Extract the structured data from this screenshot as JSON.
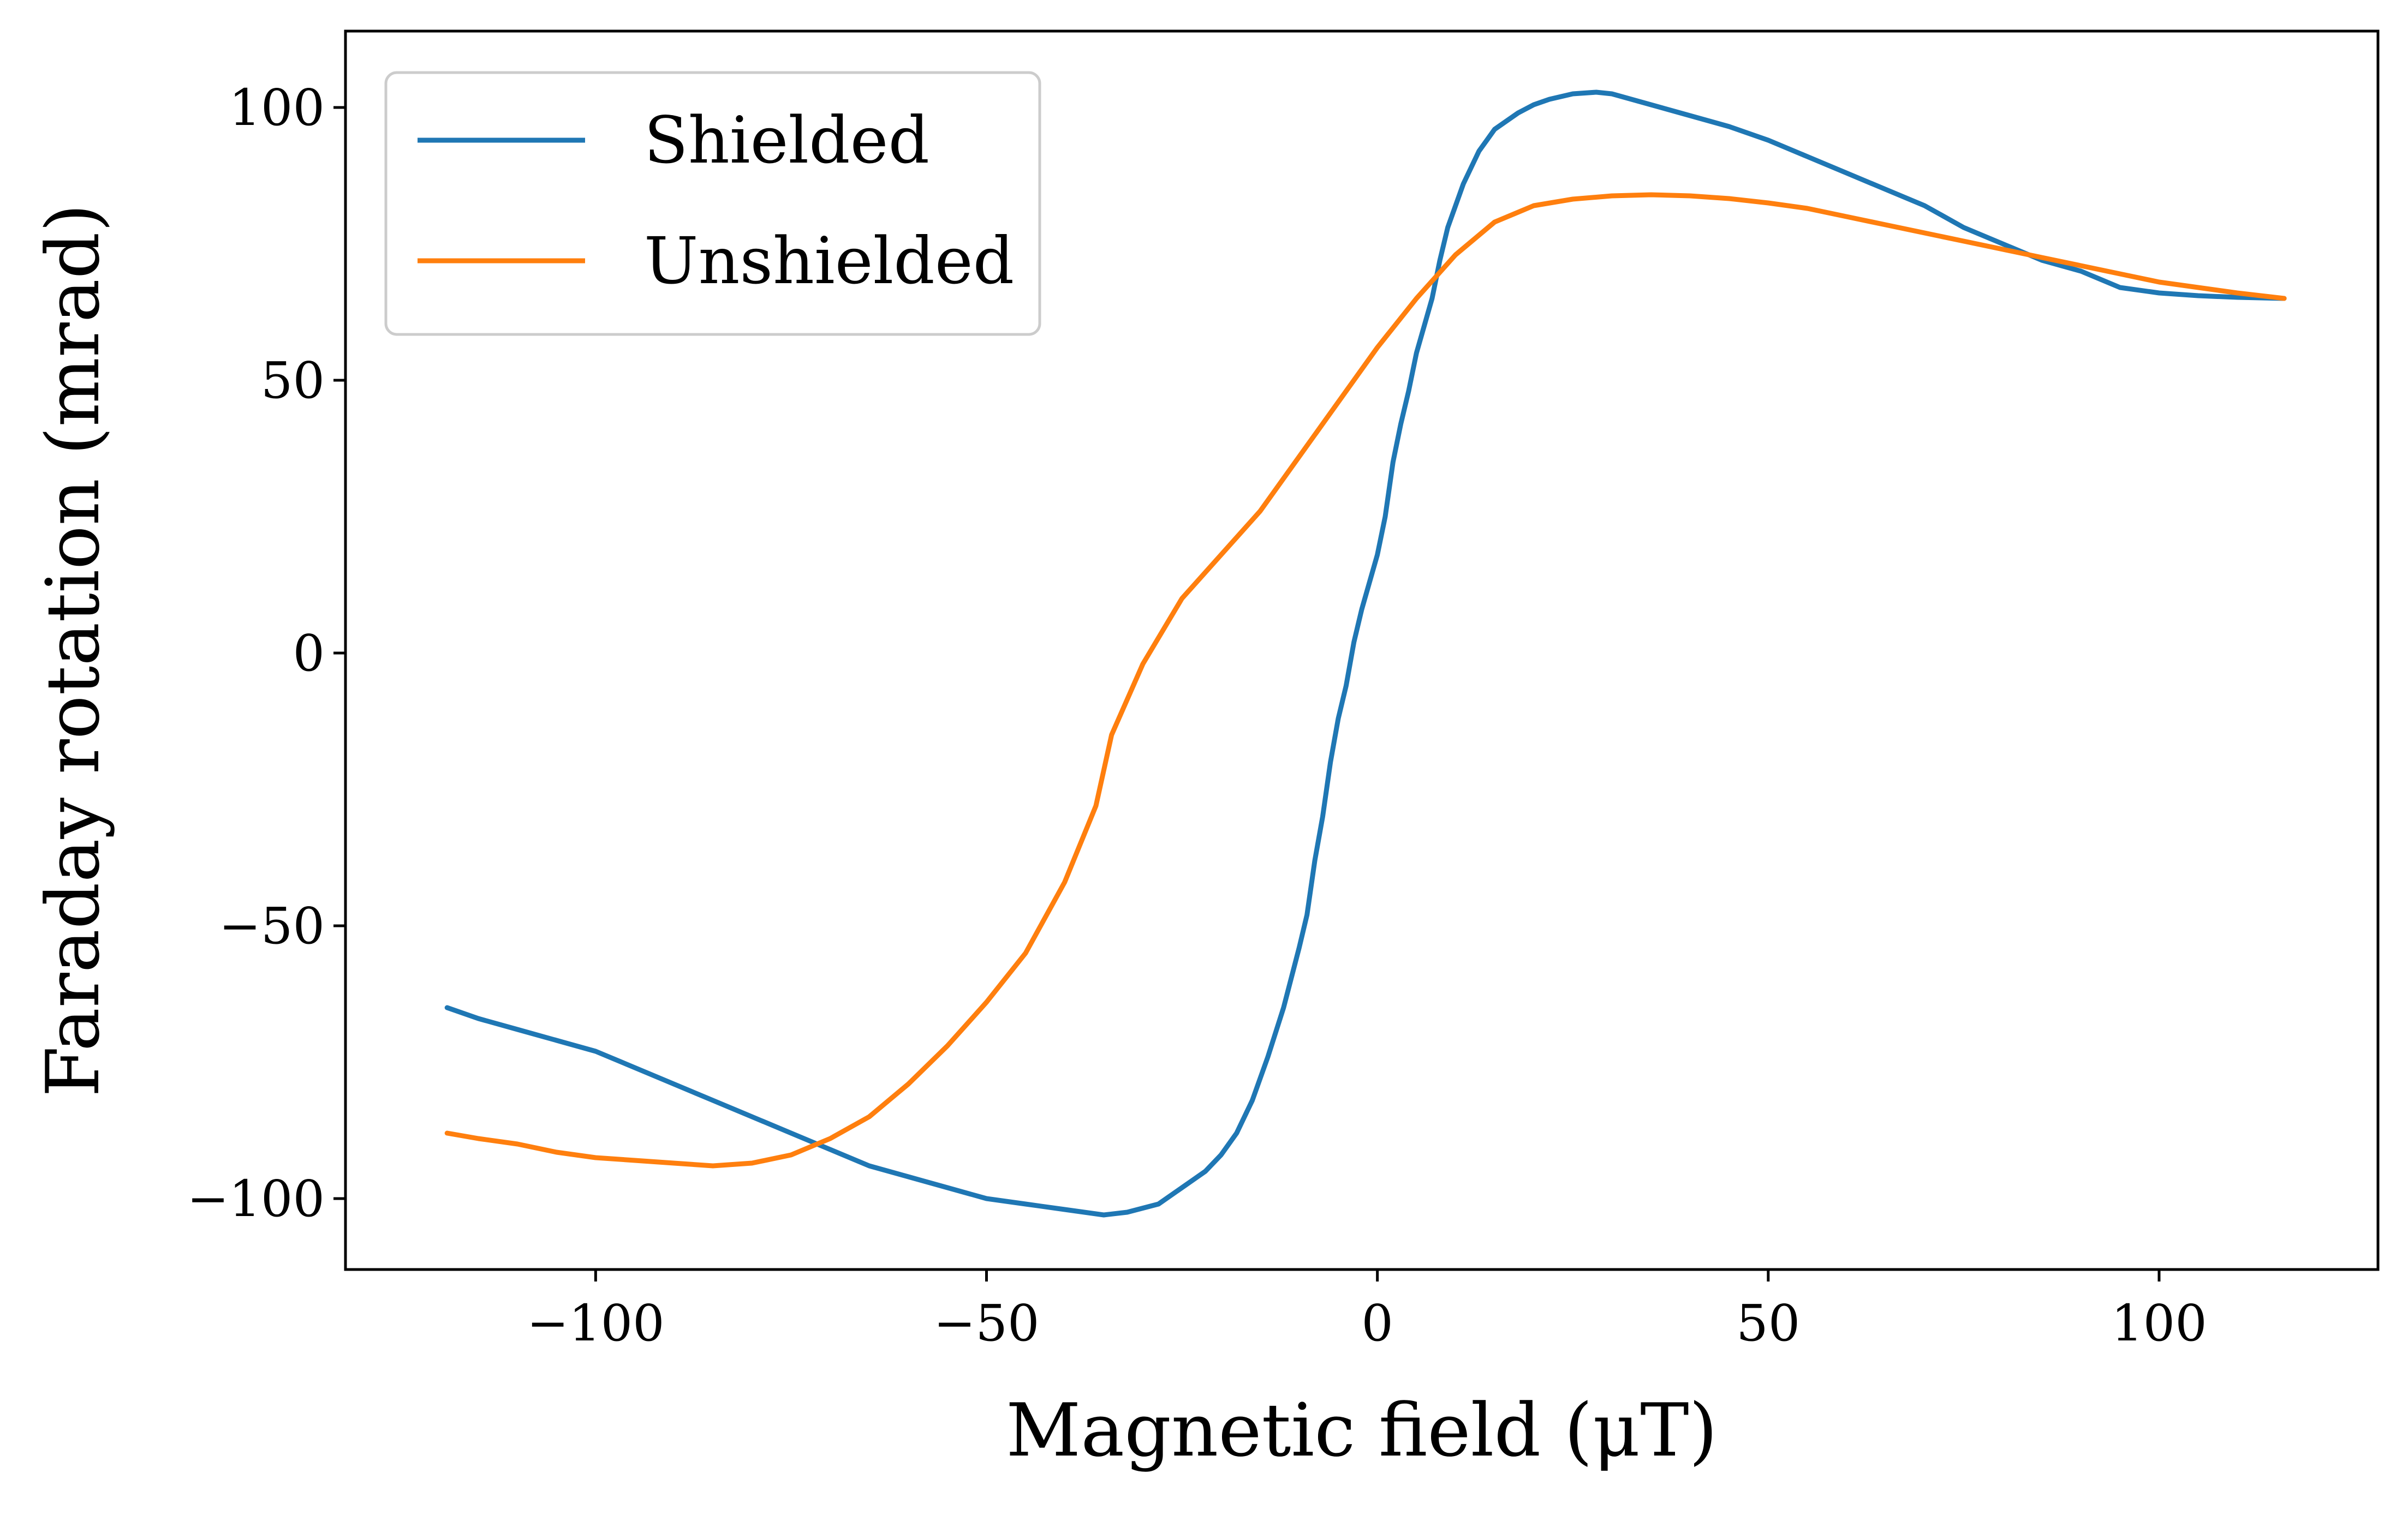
{
  "chart_data": {
    "type": "line",
    "title": "",
    "xlabel": "Magnetic field (μT)",
    "ylabel": "Faraday rotation (mrad)",
    "xlim": [
      -132,
      128
    ],
    "ylim": [
      -113,
      114
    ],
    "xticks": [
      -100,
      -50,
      0,
      50,
      100
    ],
    "yticks": [
      -100,
      -50,
      0,
      50,
      100
    ],
    "xtick_labels": [
      "−100",
      "−50",
      "0",
      "50",
      "100"
    ],
    "ytick_labels": [
      "−100",
      "−50",
      "0",
      "50",
      "100"
    ],
    "grid": false,
    "legend": {
      "placement": "top-left",
      "entries": [
        "Shielded",
        "Unshielded"
      ]
    },
    "series": [
      {
        "name": "Shielded",
        "color": "#1f77b4",
        "x": [
          -119,
          -115,
          -110,
          -105,
          -100,
          -95,
          -90,
          -85,
          -80,
          -75,
          -70,
          -65,
          -60,
          -55,
          -50,
          -45,
          -40,
          -35,
          -32,
          -28,
          -25,
          -22,
          -20,
          -18,
          -16,
          -14,
          -12,
          -10,
          -9,
          -8,
          -7,
          -6,
          -5,
          -4,
          -3,
          -2,
          -1,
          0,
          1,
          2,
          3,
          4,
          5,
          6,
          7,
          8,
          9,
          10,
          11,
          12,
          13,
          14,
          15,
          16,
          18,
          20,
          22,
          25,
          28,
          30,
          35,
          40,
          45,
          50,
          55,
          60,
          65,
          70,
          75,
          80,
          85,
          90,
          95,
          100,
          105,
          110,
          116
        ],
        "y": [
          -65,
          -67,
          -69,
          -71,
          -73,
          -76,
          -79,
          -82,
          -85,
          -88,
          -91,
          -94,
          -96,
          -98,
          -100,
          -101,
          -102,
          -103,
          -102.5,
          -101,
          -98,
          -95,
          -92,
          -88,
          -82,
          -74,
          -65,
          -54,
          -48,
          -38,
          -30,
          -20,
          -12,
          -6,
          2,
          8,
          13,
          18,
          25,
          35,
          42,
          48,
          55,
          60,
          65,
          72,
          78,
          82,
          86,
          89,
          92,
          94,
          96,
          97,
          99,
          100.5,
          101.5,
          102.5,
          102.8,
          102.5,
          100.5,
          98.5,
          96.5,
          94,
          91,
          88,
          85,
          82,
          78,
          75,
          72,
          70,
          67,
          66,
          65.5,
          65.2,
          65
        ]
      },
      {
        "name": "Unshielded",
        "color": "#ff7f0e",
        "x": [
          -119,
          -115,
          -110,
          -105,
          -100,
          -95,
          -90,
          -85,
          -80,
          -75,
          -70,
          -65,
          -60,
          -55,
          -50,
          -45,
          -40,
          -36,
          -34,
          -30,
          -25,
          -20,
          -15,
          -10,
          -5,
          0,
          5,
          10,
          15,
          20,
          25,
          30,
          35,
          40,
          45,
          50,
          55,
          60,
          65,
          70,
          75,
          80,
          85,
          90,
          95,
          100,
          105,
          110,
          116
        ],
        "y": [
          -88,
          -89,
          -90,
          -91.5,
          -92.5,
          -93,
          -93.5,
          -94,
          -93.5,
          -92,
          -89,
          -85,
          -79,
          -72,
          -64,
          -55,
          -42,
          -28,
          -15,
          -2,
          10,
          18,
          26,
          36,
          46,
          56,
          65,
          73,
          79,
          82,
          83.2,
          83.8,
          84,
          83.8,
          83.3,
          82.5,
          81.5,
          80,
          78.5,
          77,
          75.5,
          74,
          72.5,
          71,
          69.5,
          68,
          67,
          66,
          65
        ]
      }
    ]
  }
}
